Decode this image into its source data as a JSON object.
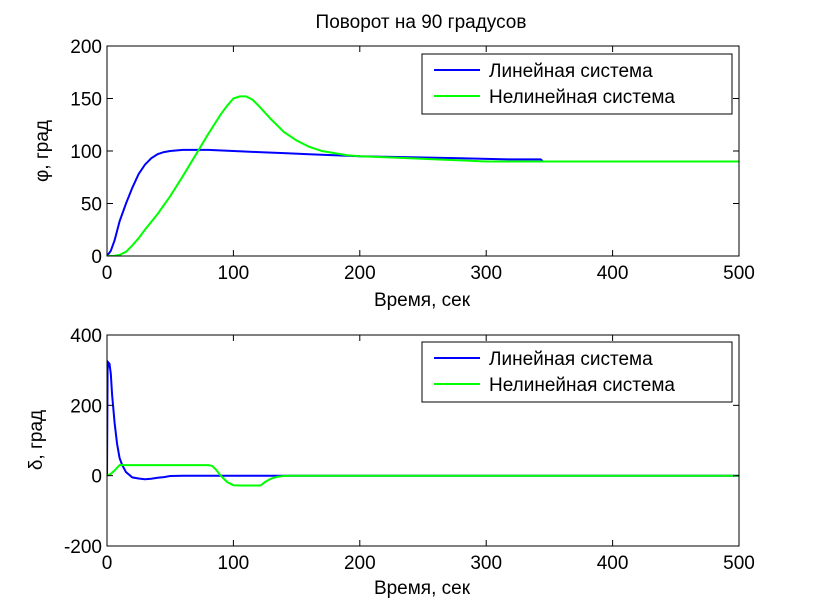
{
  "figure_title": "Поворот на 90 градусов",
  "chart_data": [
    {
      "type": "line",
      "xlabel": "Время, сек",
      "ylabel": "φ, град",
      "xlim": [
        0,
        500
      ],
      "ylim": [
        0,
        200
      ],
      "xticks": [
        "0",
        "100",
        "200",
        "300",
        "400",
        "500"
      ],
      "yticks": [
        "0",
        "50",
        "100",
        "150",
        "200"
      ],
      "grid": false,
      "legend_position": "top-right",
      "series": [
        {
          "name": "Линейная система",
          "color": "#0000ff",
          "x": [
            0,
            3,
            6,
            10,
            15,
            20,
            25,
            30,
            35,
            40,
            45,
            50,
            60,
            80,
            100,
            120,
            140,
            160,
            180,
            200,
            220,
            240,
            260,
            280,
            300,
            320,
            343,
            345,
            400,
            500
          ],
          "y": [
            0,
            5,
            15,
            33,
            50,
            65,
            78,
            87,
            93,
            97,
            99,
            100,
            101,
            101,
            100,
            99,
            98,
            97,
            96,
            95,
            94.5,
            94,
            93.5,
            93,
            92.5,
            92,
            92,
            90,
            90,
            90
          ]
        },
        {
          "name": "Нелинейная система",
          "color": "#00ff00",
          "x": [
            0,
            5,
            10,
            15,
            20,
            25,
            30,
            40,
            50,
            60,
            70,
            80,
            90,
            95,
            100,
            105,
            110,
            115,
            120,
            130,
            140,
            150,
            160,
            170,
            180,
            190,
            200,
            220,
            240,
            260,
            280,
            300,
            340,
            400,
            500
          ],
          "y": [
            0,
            0,
            1,
            4,
            10,
            17,
            25,
            40,
            57,
            76,
            96,
            116,
            135,
            143,
            150,
            152,
            152,
            149,
            143,
            130,
            118,
            110,
            104,
            100,
            98,
            96,
            95,
            94,
            93,
            92,
            91,
            90,
            90,
            90,
            90
          ]
        }
      ]
    },
    {
      "type": "line",
      "xlabel": "Время, сек",
      "ylabel": "δ, град",
      "xlim": [
        0,
        500
      ],
      "ylim": [
        -200,
        400
      ],
      "xticks": [
        "0",
        "100",
        "200",
        "300",
        "400",
        "500"
      ],
      "yticks": [
        "-200",
        "0",
        "200",
        "400"
      ],
      "grid": false,
      "legend_position": "top-right",
      "series": [
        {
          "name": "Линейная система",
          "color": "#0000ff",
          "x": [
            0,
            0.5,
            1,
            2,
            3,
            4,
            6,
            8,
            10,
            12,
            15,
            20,
            25,
            30,
            35,
            40,
            45,
            50,
            60,
            100,
            150,
            500
          ],
          "y": [
            0,
            300,
            322,
            318,
            290,
            230,
            150,
            90,
            50,
            30,
            10,
            -5,
            -8,
            -10,
            -9,
            -6,
            -4,
            -1,
            0,
            0,
            0,
            0
          ]
        },
        {
          "name": "Нелинейная система",
          "color": "#00ff00",
          "x": [
            0,
            3,
            6,
            10,
            15,
            20,
            30,
            40,
            50,
            60,
            70,
            80,
            83,
            86,
            90,
            95,
            100,
            105,
            110,
            115,
            120,
            122,
            125,
            130,
            135,
            140,
            145,
            150,
            200,
            500
          ],
          "y": [
            0,
            5,
            15,
            30,
            30,
            30,
            30,
            30,
            30,
            30,
            30,
            30,
            28,
            18,
            0,
            -18,
            -27,
            -28,
            -28,
            -28,
            -28,
            -27,
            -18,
            -8,
            -3,
            -1,
            0,
            0,
            0,
            0
          ]
        }
      ]
    }
  ]
}
